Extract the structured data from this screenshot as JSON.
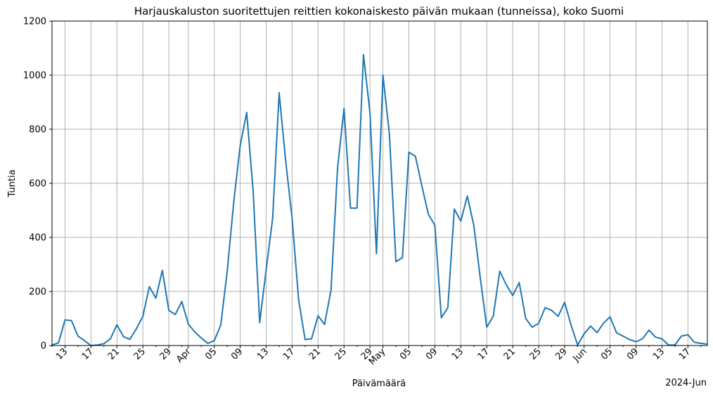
{
  "chart_data": {
    "type": "line",
    "title": "Harjauskaluston suoritettujen reittien kokonaiskesto päivän mukaan (tunneissa), koko Suomi",
    "xlabel": "Päivämäärä",
    "ylabel": "Tuntia",
    "x_offset_label": "2024-Jun",
    "ylim": [
      0,
      1200
    ],
    "yticks": [
      0,
      200,
      400,
      600,
      800,
      1000,
      1200
    ],
    "xlim": [
      "2024-03-11",
      "2024-06-20"
    ],
    "grid": true,
    "color": "#1f77b4",
    "xticks": [
      {
        "date": "2024-03-13",
        "label": "13"
      },
      {
        "date": "2024-03-17",
        "label": "17"
      },
      {
        "date": "2024-03-21",
        "label": "21"
      },
      {
        "date": "2024-03-25",
        "label": "25"
      },
      {
        "date": "2024-03-29",
        "label": "29"
      },
      {
        "date": "2024-04-01",
        "label": "Apr"
      },
      {
        "date": "2024-04-05",
        "label": "05"
      },
      {
        "date": "2024-04-09",
        "label": "09"
      },
      {
        "date": "2024-04-13",
        "label": "13"
      },
      {
        "date": "2024-04-17",
        "label": "17"
      },
      {
        "date": "2024-04-21",
        "label": "21"
      },
      {
        "date": "2024-04-25",
        "label": "25"
      },
      {
        "date": "2024-04-29",
        "label": "29"
      },
      {
        "date": "2024-05-01",
        "label": "May"
      },
      {
        "date": "2024-05-05",
        "label": "05"
      },
      {
        "date": "2024-05-09",
        "label": "09"
      },
      {
        "date": "2024-05-13",
        "label": "13"
      },
      {
        "date": "2024-05-17",
        "label": "17"
      },
      {
        "date": "2024-05-21",
        "label": "21"
      },
      {
        "date": "2024-05-25",
        "label": "25"
      },
      {
        "date": "2024-05-29",
        "label": "29"
      },
      {
        "date": "2024-06-01",
        "label": "Jun"
      },
      {
        "date": "2024-06-05",
        "label": "05"
      },
      {
        "date": "2024-06-09",
        "label": "09"
      },
      {
        "date": "2024-06-13",
        "label": "13"
      },
      {
        "date": "2024-06-17",
        "label": "17"
      }
    ],
    "x": [
      "2024-03-11",
      "2024-03-12",
      "2024-03-13",
      "2024-03-14",
      "2024-03-15",
      "2024-03-16",
      "2024-03-17",
      "2024-03-18",
      "2024-03-19",
      "2024-03-20",
      "2024-03-21",
      "2024-03-22",
      "2024-03-23",
      "2024-03-24",
      "2024-03-25",
      "2024-03-26",
      "2024-03-27",
      "2024-03-28",
      "2024-03-29",
      "2024-03-30",
      "2024-03-31",
      "2024-04-01",
      "2024-04-02",
      "2024-04-03",
      "2024-04-04",
      "2024-04-05",
      "2024-04-06",
      "2024-04-07",
      "2024-04-08",
      "2024-04-09",
      "2024-04-10",
      "2024-04-11",
      "2024-04-12",
      "2024-04-13",
      "2024-04-14",
      "2024-04-15",
      "2024-04-16",
      "2024-04-17",
      "2024-04-18",
      "2024-04-19",
      "2024-04-20",
      "2024-04-21",
      "2024-04-22",
      "2024-04-23",
      "2024-04-24",
      "2024-04-25",
      "2024-04-26",
      "2024-04-27",
      "2024-04-28",
      "2024-04-29",
      "2024-04-30",
      "2024-05-01",
      "2024-05-02",
      "2024-05-03",
      "2024-05-04",
      "2024-05-05",
      "2024-05-06",
      "2024-05-07",
      "2024-05-08",
      "2024-05-09",
      "2024-05-10",
      "2024-05-11",
      "2024-05-12",
      "2024-05-13",
      "2024-05-14",
      "2024-05-15",
      "2024-05-16",
      "2024-05-17",
      "2024-05-18",
      "2024-05-19",
      "2024-05-20",
      "2024-05-21",
      "2024-05-22",
      "2024-05-23",
      "2024-05-24",
      "2024-05-25",
      "2024-05-26",
      "2024-05-27",
      "2024-05-28",
      "2024-05-29",
      "2024-05-30",
      "2024-05-31",
      "2024-06-01",
      "2024-06-02",
      "2024-06-03",
      "2024-06-04",
      "2024-06-05",
      "2024-06-06",
      "2024-06-07",
      "2024-06-08",
      "2024-06-09",
      "2024-06-10",
      "2024-06-11",
      "2024-06-12",
      "2024-06-13",
      "2024-06-14",
      "2024-06-15",
      "2024-06-16",
      "2024-06-17",
      "2024-06-18",
      "2024-06-19",
      "2024-06-20"
    ],
    "values": [
      2,
      10,
      95,
      92,
      35,
      18,
      0,
      2,
      7,
      25,
      77,
      33,
      23,
      62,
      108,
      218,
      175,
      278,
      130,
      115,
      163,
      80,
      50,
      28,
      8,
      18,
      75,
      275,
      530,
      740,
      862,
      570,
      85,
      280,
      470,
      935,
      685,
      470,
      170,
      22,
      25,
      110,
      78,
      205,
      655,
      877,
      508,
      508,
      1076,
      860,
      340,
      1000,
      780,
      310,
      325,
      715,
      700,
      590,
      485,
      445,
      103,
      140,
      505,
      460,
      553,
      445,
      250,
      68,
      108,
      275,
      225,
      185,
      233,
      100,
      68,
      82,
      140,
      130,
      108,
      160,
      75,
      2,
      43,
      72,
      48,
      83,
      106,
      47,
      35,
      22,
      14,
      25,
      57,
      31,
      25,
      2,
      2,
      35,
      40,
      12,
      8,
      5
    ]
  }
}
